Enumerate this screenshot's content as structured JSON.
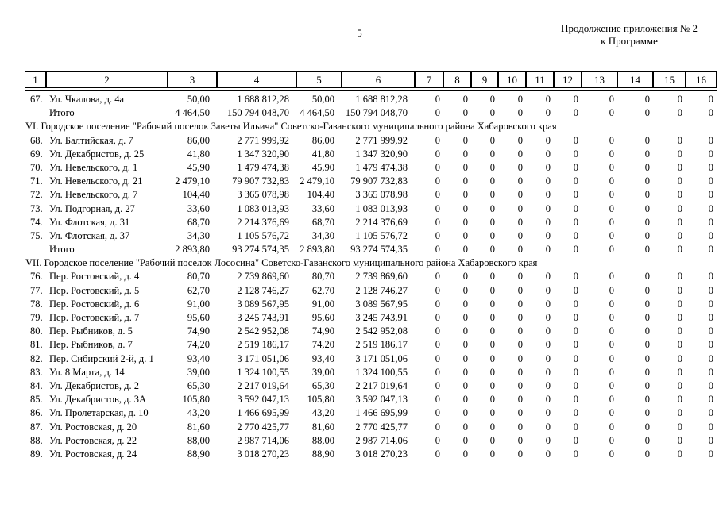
{
  "page": {
    "page_number": "5",
    "corner_header_line1": "Продолжение приложения № 2",
    "corner_header_line2": "к Программе"
  },
  "table": {
    "column_numbers": [
      "1",
      "2",
      "3",
      "4",
      "5",
      "6",
      "7",
      "8",
      "9",
      "10",
      "11",
      "12",
      "13",
      "14",
      "15",
      "16"
    ],
    "rows": [
      {
        "type": "data",
        "num": "67.",
        "address": "Ул. Чкалова, д. 4а",
        "values": [
          "50,00",
          "1 688 812,28",
          "50,00",
          "1 688 812,28"
        ],
        "zeros": [
          "0",
          "0",
          "0",
          "0",
          "0",
          "0",
          "0",
          "0",
          "0",
          "0"
        ]
      },
      {
        "type": "total",
        "label": "Итого",
        "values": [
          "4 464,50",
          "150 794 048,70",
          "4 464,50",
          "150 794 048,70"
        ],
        "zeros": [
          "0",
          "0",
          "0",
          "0",
          "0",
          "0",
          "0",
          "0",
          "0",
          "0"
        ]
      },
      {
        "type": "section",
        "label": "VI. Городское поселение \"Рабочий поселок Заветы Ильича\" Советско-Гаванского муниципального района Хабаровского края"
      },
      {
        "type": "data",
        "num": "68.",
        "address": "Ул. Балтийская, д. 7",
        "values": [
          "86,00",
          "2 771 999,92",
          "86,00",
          "2 771 999,92"
        ],
        "zeros": [
          "0",
          "0",
          "0",
          "0",
          "0",
          "0",
          "0",
          "0",
          "0",
          "0"
        ]
      },
      {
        "type": "data",
        "num": "69.",
        "address": "Ул. Декабристов, д. 25",
        "values": [
          "41,80",
          "1 347 320,90",
          "41,80",
          "1 347 320,90"
        ],
        "zeros": [
          "0",
          "0",
          "0",
          "0",
          "0",
          "0",
          "0",
          "0",
          "0",
          "0"
        ]
      },
      {
        "type": "data",
        "num": "70.",
        "address": "Ул. Невельского, д. 1",
        "values": [
          "45,90",
          "1 479 474,38",
          "45,90",
          "1 479 474,38"
        ],
        "zeros": [
          "0",
          "0",
          "0",
          "0",
          "0",
          "0",
          "0",
          "0",
          "0",
          "0"
        ]
      },
      {
        "type": "data",
        "num": "71.",
        "address": "Ул. Невельского, д. 21",
        "values": [
          "2 479,10",
          "79 907 732,83",
          "2 479,10",
          "79 907 732,83"
        ],
        "zeros": [
          "0",
          "0",
          "0",
          "0",
          "0",
          "0",
          "0",
          "0",
          "0",
          "0"
        ]
      },
      {
        "type": "data",
        "num": "72.",
        "address": "Ул. Невельского, д. 7",
        "values": [
          "104,40",
          "3 365 078,98",
          "104,40",
          "3 365 078,98"
        ],
        "zeros": [
          "0",
          "0",
          "0",
          "0",
          "0",
          "0",
          "0",
          "0",
          "0",
          "0"
        ]
      },
      {
        "type": "data",
        "num": "73.",
        "address": "Ул. Подгорная, д. 27",
        "values": [
          "33,60",
          "1 083 013,93",
          "33,60",
          "1 083 013,93"
        ],
        "zeros": [
          "0",
          "0",
          "0",
          "0",
          "0",
          "0",
          "0",
          "0",
          "0",
          "0"
        ]
      },
      {
        "type": "data",
        "num": "74.",
        "address": "Ул. Флотская, д. 31",
        "values": [
          "68,70",
          "2 214 376,69",
          "68,70",
          "2 214 376,69"
        ],
        "zeros": [
          "0",
          "0",
          "0",
          "0",
          "0",
          "0",
          "0",
          "0",
          "0",
          "0"
        ]
      },
      {
        "type": "data",
        "num": "75.",
        "address": "Ул. Флотская, д. 37",
        "values": [
          "34,30",
          "1 105 576,72",
          "34,30",
          "1 105 576,72"
        ],
        "zeros": [
          "0",
          "0",
          "0",
          "0",
          "0",
          "0",
          "0",
          "0",
          "0",
          "0"
        ]
      },
      {
        "type": "total",
        "label": "Итого",
        "values": [
          "2 893,80",
          "93 274 574,35",
          "2 893,80",
          "93 274 574,35"
        ],
        "zeros": [
          "0",
          "0",
          "0",
          "0",
          "0",
          "0",
          "0",
          "0",
          "0",
          "0"
        ]
      },
      {
        "type": "section",
        "label": "VII. Городское поселение \"Рабочий поселок Лососина\" Советско-Гаванского муниципального района Хабаровского края"
      },
      {
        "type": "data",
        "num": "76.",
        "address": "Пер. Ростовский, д. 4",
        "values": [
          "80,70",
          "2 739 869,60",
          "80,70",
          "2 739 869,60"
        ],
        "zeros": [
          "0",
          "0",
          "0",
          "0",
          "0",
          "0",
          "0",
          "0",
          "0",
          "0"
        ]
      },
      {
        "type": "data",
        "num": "77.",
        "address": "Пер. Ростовский, д. 5",
        "values": [
          "62,70",
          "2 128 746,27",
          "62,70",
          "2 128 746,27"
        ],
        "zeros": [
          "0",
          "0",
          "0",
          "0",
          "0",
          "0",
          "0",
          "0",
          "0",
          "0"
        ]
      },
      {
        "type": "data",
        "num": "78.",
        "address": "Пер. Ростовский, д. 6",
        "values": [
          "91,00",
          "3 089 567,95",
          "91,00",
          "3 089 567,95"
        ],
        "zeros": [
          "0",
          "0",
          "0",
          "0",
          "0",
          "0",
          "0",
          "0",
          "0",
          "0"
        ]
      },
      {
        "type": "data",
        "num": "79.",
        "address": "Пер. Ростовский, д. 7",
        "values": [
          "95,60",
          "3 245 743,91",
          "95,60",
          "3 245 743,91"
        ],
        "zeros": [
          "0",
          "0",
          "0",
          "0",
          "0",
          "0",
          "0",
          "0",
          "0",
          "0"
        ]
      },
      {
        "type": "data",
        "num": "80.",
        "address": "Пер. Рыбников, д. 5",
        "values": [
          "74,90",
          "2 542 952,08",
          "74,90",
          "2 542 952,08"
        ],
        "zeros": [
          "0",
          "0",
          "0",
          "0",
          "0",
          "0",
          "0",
          "0",
          "0",
          "0"
        ]
      },
      {
        "type": "data",
        "num": "81.",
        "address": "Пер. Рыбников, д. 7",
        "values": [
          "74,20",
          "2 519 186,17",
          "74,20",
          "2 519 186,17"
        ],
        "zeros": [
          "0",
          "0",
          "0",
          "0",
          "0",
          "0",
          "0",
          "0",
          "0",
          "0"
        ]
      },
      {
        "type": "data",
        "num": "82.",
        "address": "Пер. Сибирский 2-й, д. 1",
        "values": [
          "93,40",
          "3 171 051,06",
          "93,40",
          "3 171 051,06"
        ],
        "zeros": [
          "0",
          "0",
          "0",
          "0",
          "0",
          "0",
          "0",
          "0",
          "0",
          "0"
        ]
      },
      {
        "type": "data",
        "num": "83.",
        "address": "Ул. 8 Марта, д. 14",
        "values": [
          "39,00",
          "1 324 100,55",
          "39,00",
          "1 324 100,55"
        ],
        "zeros": [
          "0",
          "0",
          "0",
          "0",
          "0",
          "0",
          "0",
          "0",
          "0",
          "0"
        ]
      },
      {
        "type": "data",
        "num": "84.",
        "address": "Ул. Декабристов, д. 2",
        "values": [
          "65,30",
          "2 217 019,64",
          "65,30",
          "2 217 019,64"
        ],
        "zeros": [
          "0",
          "0",
          "0",
          "0",
          "0",
          "0",
          "0",
          "0",
          "0",
          "0"
        ]
      },
      {
        "type": "data",
        "num": "85.",
        "address": "Ул. Декабристов, д. 3А",
        "values": [
          "105,80",
          "3 592 047,13",
          "105,80",
          "3 592 047,13"
        ],
        "zeros": [
          "0",
          "0",
          "0",
          "0",
          "0",
          "0",
          "0",
          "0",
          "0",
          "0"
        ]
      },
      {
        "type": "data",
        "num": "86.",
        "address": "Ул. Пролетарская, д. 10",
        "values": [
          "43,20",
          "1 466 695,99",
          "43,20",
          "1 466 695,99"
        ],
        "zeros": [
          "0",
          "0",
          "0",
          "0",
          "0",
          "0",
          "0",
          "0",
          "0",
          "0"
        ]
      },
      {
        "type": "data",
        "num": "87.",
        "address": "Ул. Ростовская, д. 20",
        "values": [
          "81,60",
          "2 770 425,77",
          "81,60",
          "2 770 425,77"
        ],
        "zeros": [
          "0",
          "0",
          "0",
          "0",
          "0",
          "0",
          "0",
          "0",
          "0",
          "0"
        ]
      },
      {
        "type": "data",
        "num": "88.",
        "address": "Ул. Ростовская, д. 22",
        "values": [
          "88,00",
          "2 987 714,06",
          "88,00",
          "2 987 714,06"
        ],
        "zeros": [
          "0",
          "0",
          "0",
          "0",
          "0",
          "0",
          "0",
          "0",
          "0",
          "0"
        ]
      },
      {
        "type": "data",
        "num": "89.",
        "address": "Ул. Ростовская, д. 24",
        "values": [
          "88,90",
          "3 018 270,23",
          "88,90",
          "3 018 270,23"
        ],
        "zeros": [
          "0",
          "0",
          "0",
          "0",
          "0",
          "0",
          "0",
          "0",
          "0",
          "0"
        ]
      }
    ]
  }
}
